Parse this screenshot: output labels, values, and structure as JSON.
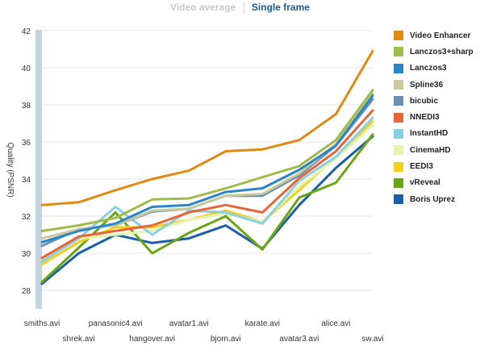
{
  "tabs": {
    "video_average": "Video average",
    "single_frame": "Single frame"
  },
  "chart_data": {
    "type": "line",
    "ylabel": "Quality (PSNR)",
    "xlabel": "",
    "title": "",
    "ylim": [
      27,
      42
    ],
    "yticks": [
      28,
      30,
      32,
      34,
      36,
      38,
      40,
      42
    ],
    "grid": true,
    "legend_position": "right",
    "categories": [
      "smiths.avi",
      "shrek.avi",
      "panasonic4.avi",
      "hangover.avi",
      "avatar1.avi",
      "bjorn.avi",
      "karate.avi",
      "avatar3.avi",
      "alice.avi",
      "sw.avi"
    ],
    "series": [
      {
        "name": "Video Enhancer",
        "color": "#e08a14",
        "values": [
          32.6,
          32.75,
          33.4,
          34.0,
          34.45,
          35.5,
          35.6,
          36.1,
          37.5,
          40.9
        ]
      },
      {
        "name": "Lanczos3+sharp",
        "color": "#9fbb4a",
        "values": [
          31.2,
          31.5,
          31.9,
          32.9,
          32.95,
          33.5,
          34.1,
          34.7,
          36.1,
          38.8
        ]
      },
      {
        "name": "Lanczos3",
        "color": "#2a86c6",
        "values": [
          30.6,
          31.2,
          31.6,
          32.5,
          32.6,
          33.3,
          33.5,
          34.5,
          35.8,
          38.5
        ]
      },
      {
        "name": "Spline36",
        "color": "#cbc99a",
        "values": [
          30.8,
          31.3,
          31.5,
          32.3,
          32.4,
          33.1,
          33.2,
          34.3,
          35.9,
          38.6
        ]
      },
      {
        "name": "bicubic",
        "color": "#6990b4",
        "values": [
          30.4,
          31.3,
          31.5,
          32.25,
          32.4,
          33.1,
          33.1,
          34.2,
          35.8,
          38.3
        ]
      },
      {
        "name": "NNEDI3",
        "color": "#e8653a",
        "values": [
          29.75,
          30.9,
          31.2,
          31.5,
          32.2,
          32.6,
          32.2,
          34.05,
          35.5,
          37.7
        ]
      },
      {
        "name": "InstantHD",
        "color": "#8acfe4",
        "values": [
          29.55,
          30.8,
          32.5,
          31.0,
          32.3,
          32.2,
          31.6,
          33.9,
          35.2,
          37.3
        ]
      },
      {
        "name": "CinemaHD",
        "color": "#e3f4ad",
        "values": [
          29.6,
          30.8,
          31.0,
          31.2,
          31.8,
          32.15,
          31.7,
          33.6,
          35.1,
          36.9
        ]
      },
      {
        "name": "EEDI3",
        "color": "#f5cf1e",
        "values": [
          29.4,
          30.6,
          31.4,
          31.4,
          31.8,
          32.3,
          31.7,
          33.4,
          35.2,
          37.1
        ]
      },
      {
        "name": "vReveal",
        "color": "#6aa514",
        "values": [
          28.45,
          30.3,
          32.2,
          30.0,
          31.1,
          32.0,
          30.2,
          33.0,
          33.8,
          36.4
        ]
      },
      {
        "name": "Boris Uprez",
        "color": "#1a5fa8",
        "values": [
          28.35,
          30.0,
          31.0,
          30.55,
          30.8,
          31.5,
          30.25,
          32.6,
          34.6,
          36.3
        ]
      }
    ]
  }
}
